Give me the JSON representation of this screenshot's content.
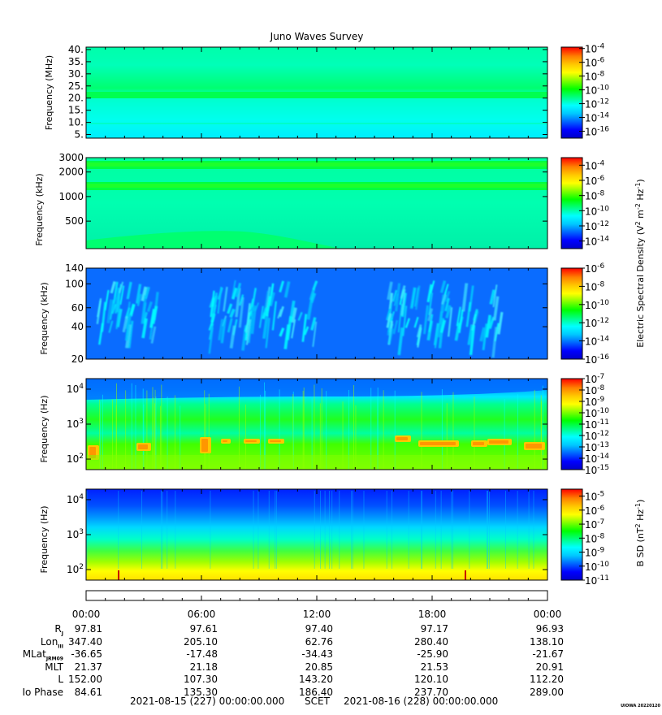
{
  "title": "Juno Waves Survey",
  "colors": {
    "scale": [
      "#0000c8",
      "#0000ff",
      "#0064ff",
      "#00c8ff",
      "#00ffff",
      "#00ff80",
      "#00ff00",
      "#80ff00",
      "#ffff00",
      "#ffc800",
      "#ff8000",
      "#ff0000"
    ],
    "panel5_base": [
      "#0028ff",
      "#0064ff",
      "#00b4ff",
      "#00ffff",
      "#00ffb4",
      "#40ff40",
      "#a0ff00",
      "#ffff00",
      "#ffe000"
    ]
  },
  "chart_data": [
    {
      "type": "heatmap",
      "ylabel": "Frequency (MHz)",
      "yscale": "linear",
      "ylim": [
        3.5,
        41
      ],
      "yticks": [
        {
          "value": 5,
          "label": "5."
        },
        {
          "value": 10,
          "label": "10."
        },
        {
          "value": 15,
          "label": "15."
        },
        {
          "value": 20,
          "label": "20."
        },
        {
          "value": 25,
          "label": "25."
        },
        {
          "value": 30,
          "label": "30."
        },
        {
          "value": 35,
          "label": "35."
        },
        {
          "value": 40,
          "label": "40."
        }
      ],
      "colorbar_ticks": [
        {
          "exp": -4,
          "label": "10",
          "sup": "-4"
        },
        {
          "exp": -6,
          "label": "10",
          "sup": "-6"
        },
        {
          "exp": -8,
          "label": "10",
          "sup": "-8"
        },
        {
          "exp": -10,
          "label": "10",
          "sup": "-10"
        },
        {
          "exp": -12,
          "label": "10",
          "sup": "-12"
        },
        {
          "exp": -14,
          "label": "10",
          "sup": "-14"
        },
        {
          "exp": -16,
          "label": "10",
          "sup": "-16"
        }
      ],
      "colorbar_range": [
        -17,
        -3.8
      ]
    },
    {
      "type": "heatmap",
      "ylabel": "Frequency (kHz)",
      "yscale": "log",
      "ylim": [
        230,
        3000
      ],
      "yticks": [
        {
          "value": 500,
          "label": "500"
        },
        {
          "value": 1000,
          "label": "1000"
        },
        {
          "value": 2000,
          "label": "2000"
        },
        {
          "value": 3000,
          "label": "3000"
        }
      ],
      "colorbar_ticks": [
        {
          "exp": -4,
          "label": "10",
          "sup": "-4"
        },
        {
          "exp": -6,
          "label": "10",
          "sup": "-6"
        },
        {
          "exp": -8,
          "label": "10",
          "sup": "-8"
        },
        {
          "exp": -10,
          "label": "10",
          "sup": "-10"
        },
        {
          "exp": -12,
          "label": "10",
          "sup": "-12"
        },
        {
          "exp": -14,
          "label": "10",
          "sup": "-14"
        }
      ],
      "colorbar_range": [
        -15,
        -3
      ]
    },
    {
      "type": "heatmap",
      "ylabel": "Frequency (kHz)",
      "yscale": "log",
      "ylim": [
        20,
        140
      ],
      "yticks": [
        {
          "value": 20,
          "label": "20"
        },
        {
          "value": 40,
          "label": "40"
        },
        {
          "value": 60,
          "label": "60"
        },
        {
          "value": 100,
          "label": "100"
        },
        {
          "value": 140,
          "label": "140"
        }
      ],
      "colorbar_ticks": [
        {
          "exp": -6,
          "label": "10",
          "sup": "-6"
        },
        {
          "exp": -8,
          "label": "10",
          "sup": "-8"
        },
        {
          "exp": -10,
          "label": "10",
          "sup": "-10"
        },
        {
          "exp": -12,
          "label": "10",
          "sup": "-12"
        },
        {
          "exp": -14,
          "label": "10",
          "sup": "-14"
        },
        {
          "exp": -16,
          "label": "10",
          "sup": "-16"
        }
      ],
      "colorbar_range": [
        -16,
        -6
      ]
    },
    {
      "type": "heatmap",
      "ylabel": "Frequency (Hz)",
      "yscale": "log",
      "ylim": [
        50,
        20000
      ],
      "yticks": [
        {
          "value": 100,
          "label": "10",
          "sup": "2"
        },
        {
          "value": 1000,
          "label": "10",
          "sup": "3"
        },
        {
          "value": 10000,
          "label": "10",
          "sup": "4"
        }
      ],
      "colorbar_ticks": [
        {
          "exp": -7,
          "label": "10",
          "sup": "-7"
        },
        {
          "exp": -8,
          "label": "10",
          "sup": "-8"
        },
        {
          "exp": -9,
          "label": "10",
          "sup": "-9"
        },
        {
          "exp": -10,
          "label": "10",
          "sup": "-10"
        },
        {
          "exp": -11,
          "label": "10",
          "sup": "-11"
        },
        {
          "exp": -12,
          "label": "10",
          "sup": "-12"
        },
        {
          "exp": -13,
          "label": "10",
          "sup": "-13"
        },
        {
          "exp": -14,
          "label": "10",
          "sup": "-14"
        },
        {
          "exp": -15,
          "label": "10",
          "sup": "-15"
        }
      ],
      "colorbar_range": [
        -15,
        -7
      ]
    },
    {
      "type": "heatmap",
      "ylabel": "Frequency (Hz)",
      "yscale": "log",
      "ylim": [
        50,
        20000
      ],
      "yticks": [
        {
          "value": 100,
          "label": "10",
          "sup": "2"
        },
        {
          "value": 1000,
          "label": "10",
          "sup": "3"
        },
        {
          "value": 10000,
          "label": "10",
          "sup": "4"
        }
      ],
      "colorbar_ticks": [
        {
          "exp": -5,
          "label": "10",
          "sup": "-5"
        },
        {
          "exp": -6,
          "label": "10",
          "sup": "-6"
        },
        {
          "exp": -7,
          "label": "10",
          "sup": "-7"
        },
        {
          "exp": -8,
          "label": "10",
          "sup": "-8"
        },
        {
          "exp": -9,
          "label": "10",
          "sup": "-9"
        },
        {
          "exp": -10,
          "label": "10",
          "sup": "-10"
        },
        {
          "exp": -11,
          "label": "10",
          "sup": "-11"
        }
      ],
      "colorbar_range": [
        -11,
        -4.5
      ]
    }
  ],
  "colorbar_label_efield": {
    "text": "Electric Spectral Density (V",
    "sup1": "2",
    "mid": " m",
    "sup2": "-2",
    "mid2": " Hz",
    "sup3": "-1",
    "end": ")"
  },
  "colorbar_label_bfield": {
    "text": "B SD (nT",
    "sup1": "2",
    "mid": " Hz",
    "sup2": "-1",
    "end": ")"
  },
  "time_ticks": [
    {
      "hour": 0,
      "label": "00:00"
    },
    {
      "hour": 6,
      "label": "06:00"
    },
    {
      "hour": 12,
      "label": "12:00"
    },
    {
      "hour": 18,
      "label": "18:00"
    },
    {
      "hour": 24,
      "label": "00:00"
    }
  ],
  "ephemeris": [
    {
      "label": "R",
      "sub": "J",
      "values": [
        "97.81",
        "97.61",
        "97.40",
        "97.17",
        "96.93"
      ]
    },
    {
      "label": "Lon",
      "sub": "III",
      "values": [
        "347.40",
        "205.10",
        "62.76",
        "280.40",
        "138.10"
      ]
    },
    {
      "label": "MLat",
      "sub": "JRM09",
      "values": [
        "-36.65",
        "-17.48",
        "-34.43",
        "-25.90",
        "-21.67"
      ]
    },
    {
      "label": "MLT",
      "sub": "",
      "values": [
        "21.37",
        "21.18",
        "20.85",
        "21.53",
        "20.91"
      ]
    },
    {
      "label": "L",
      "sub": "",
      "values": [
        "152.00",
        "107.30",
        "143.20",
        "120.10",
        "112.20"
      ]
    },
    {
      "label": "Io Phase",
      "sub": "",
      "values": [
        "84.61",
        "135.30",
        "186.40",
        "237.70",
        "289.00"
      ]
    }
  ],
  "time_range": {
    "start": "2021-08-15 (227) 00:00:00.000",
    "middle": "SCET",
    "end": "2021-08-16 (228) 00:00:00.000"
  },
  "credit": "UIOWA 20220120"
}
